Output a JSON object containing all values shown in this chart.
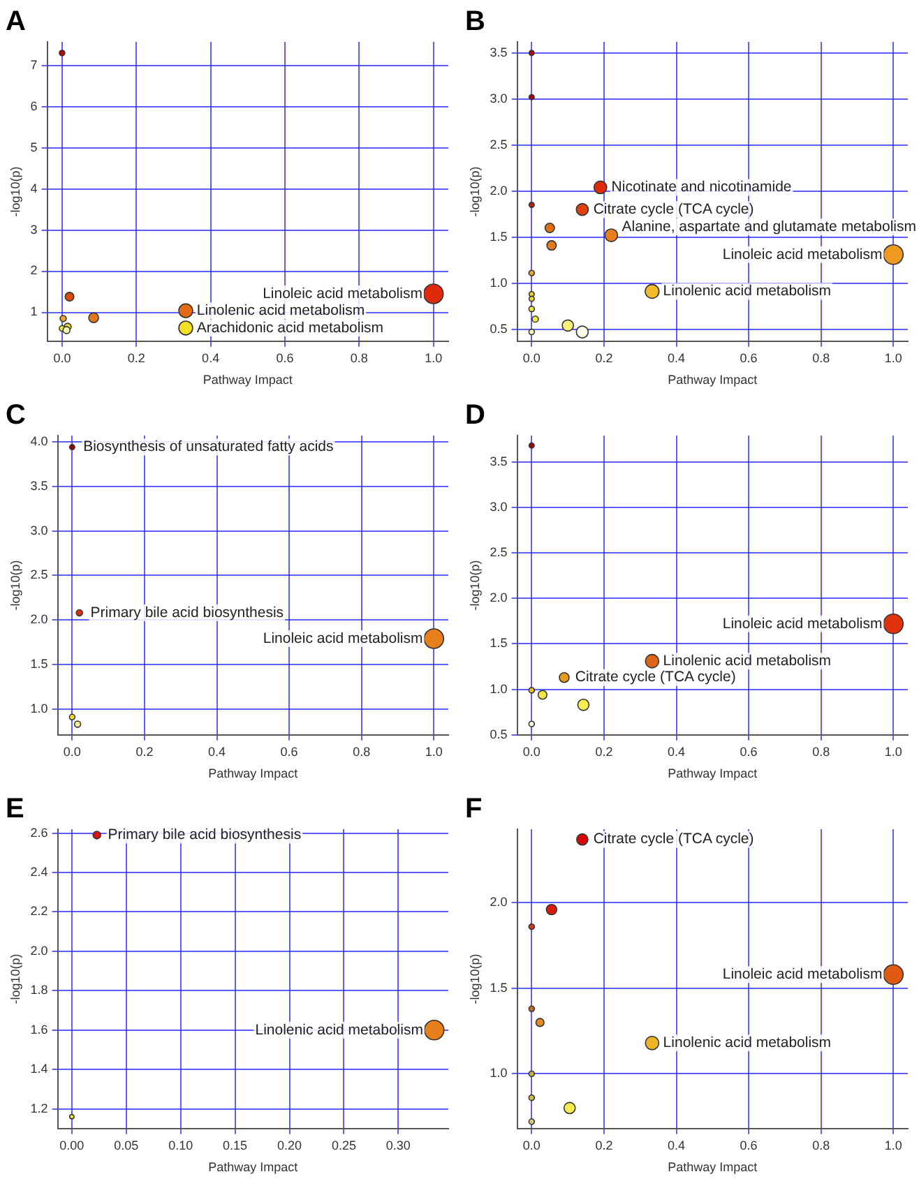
{
  "chart_data": [
    {
      "type": "bubble",
      "title": "A",
      "xlabel": "Pathway Impact",
      "ylabel": "-log10(p)",
      "grid": true,
      "x": [
        0,
        0.02,
        0.085,
        0.003,
        0.015,
        0,
        0.012,
        0.333,
        0.333,
        1.0
      ],
      "values": [
        7.3,
        1.38,
        0.87,
        0.85,
        0.65,
        0.61,
        0.57,
        1.04,
        0.62,
        1.45
      ],
      "sizes": [
        0.08,
        0.2,
        0.25,
        0.1,
        0.13,
        0.08,
        0.13,
        0.5,
        0.5,
        1
      ],
      "colors": [
        "#c00000",
        "#dd4a10",
        "#e07a1c",
        "#eea030",
        "#f2dc30",
        "#f5ee40",
        "#fbf7b0",
        "#e46a14",
        "#f4e020",
        "#e02a0c"
      ],
      "xlim": [
        -0.04,
        1.04
      ],
      "ylim": [
        0.3,
        7.57
      ],
      "xticks": [
        {
          "value": 0,
          "label": "0.0"
        },
        0.2,
        0.4,
        0.6,
        0.8,
        {
          "value": 1,
          "label": "1.0"
        }
      ],
      "yticks": [
        1,
        2,
        3,
        4,
        5,
        6,
        7
      ],
      "annotations": [
        {
          "text": "Linoleic acid metabolism",
          "x": 1.0,
          "y": 1.45
        },
        {
          "text": "Linolenic acid metabolism",
          "x": 0.333,
          "y": 1.04
        },
        {
          "text": "Arachidonic acid metabolism",
          "x": 0.333,
          "y": 0.62
        }
      ]
    },
    {
      "type": "bubble",
      "title": "B",
      "xlabel": "Pathway Impact",
      "ylabel": "-log10(p)",
      "grid": true,
      "x": [
        0,
        0,
        0,
        0.19,
        0.14,
        0.05,
        0.22,
        0.055,
        0,
        0,
        0,
        0,
        0.01,
        0,
        0.1,
        0.14,
        0.333,
        1.0
      ],
      "values": [
        3.5,
        3.02,
        1.85,
        2.04,
        1.8,
        1.6,
        1.52,
        1.41,
        1.11,
        0.88,
        0.83,
        0.72,
        0.61,
        0.47,
        0.54,
        0.47,
        0.91,
        1.31
      ],
      "sizes": [
        0.07,
        0.07,
        0.07,
        0.42,
        0.37,
        0.23,
        0.42,
        0.23,
        0.08,
        0.07,
        0.07,
        0.08,
        0.1,
        0.08,
        0.33,
        0.37,
        0.5,
        1
      ],
      "colors": [
        "#b80000",
        "#b80000",
        "#c81808",
        "#e02a0c",
        "#e0400e",
        "#e07018",
        "#e67e1c",
        "#e07a1c",
        "#e8a030",
        "#f0d030",
        "#f0d838",
        "#f4e640",
        "#f6ee48",
        "#fbf7c0",
        "#f8f07a",
        "#fcfbe8",
        "#f0bc28",
        "#ec9a20"
      ],
      "xlim": [
        -0.04,
        1.04
      ],
      "ylim": [
        0.37,
        3.62
      ],
      "xticks": [
        {
          "value": 0,
          "label": "0.0"
        },
        0.2,
        0.4,
        0.6,
        0.8,
        {
          "value": 1,
          "label": "1.0"
        }
      ],
      "yticks": [
        0.5,
        {
          "value": 1,
          "label": "1.0"
        },
        1.5,
        {
          "value": 2,
          "label": "2.0"
        },
        2.5,
        {
          "value": 3,
          "label": "3.0"
        },
        3.5
      ],
      "annotations": [
        {
          "text": "Nicotinate and nicotinamide",
          "x": 0.19,
          "y": 2.04
        },
        {
          "text": "Citrate cycle (TCA cycle)",
          "x": 0.14,
          "y": 1.8
        },
        {
          "text": "Alanine, aspartate and glutamate metabolism",
          "x": 0.22,
          "y": 1.52
        },
        {
          "text": "Linoleic acid metabolism",
          "x": 1.0,
          "y": 1.31
        },
        {
          "text": "Linolenic acid metabolism",
          "x": 0.333,
          "y": 0.91
        }
      ]
    },
    {
      "type": "bubble",
      "title": "C",
      "xlabel": "Pathway Impact",
      "ylabel": "-log10(p)",
      "grid": true,
      "x": [
        0,
        0.02,
        1.0,
        0,
        0.015
      ],
      "values": [
        3.94,
        2.08,
        1.79,
        0.91,
        0.83
      ],
      "sizes": [
        0.07,
        0.1,
        1,
        0.08,
        0.1
      ],
      "colors": [
        "#a00000",
        "#d83010",
        "#e67e1c",
        "#f2dc30",
        "#f8f0a0"
      ],
      "xlim": [
        -0.04,
        1.04
      ],
      "ylim": [
        0.71,
        4.07
      ],
      "xticks": [
        {
          "value": 0,
          "label": "0.0"
        },
        0.2,
        0.4,
        0.6,
        0.8,
        {
          "value": 1,
          "label": "1.0"
        }
      ],
      "yticks": [
        {
          "value": 1,
          "label": "1.0"
        },
        1.5,
        {
          "value": 2,
          "label": "2.0"
        },
        2.5,
        {
          "value": 3,
          "label": "3.0"
        },
        3.5,
        {
          "value": 4,
          "label": "4.0"
        }
      ],
      "annotations": [
        {
          "text": "Biosynthesis of unsaturated fatty acids",
          "x": 0,
          "y": 3.94
        },
        {
          "text": "Primary bile acid biosynthesis",
          "x": 0.02,
          "y": 2.08
        },
        {
          "text": "Linoleic acid metabolism",
          "x": 1.0,
          "y": 1.79
        }
      ]
    },
    {
      "type": "bubble",
      "title": "D",
      "xlabel": "Pathway Impact",
      "ylabel": "-log10(p)",
      "grid": true,
      "x": [
        0,
        1.0,
        0.333,
        0.09,
        0,
        0.03,
        0.143,
        0
      ],
      "values": [
        3.68,
        1.72,
        1.31,
        1.13,
        0.99,
        0.94,
        0.83,
        0.62
      ],
      "sizes": [
        0.07,
        1,
        0.47,
        0.25,
        0.08,
        0.2,
        0.33,
        0.08
      ],
      "colors": [
        "#b00000",
        "#e0320c",
        "#e06418",
        "#e89a20",
        "#eebc30",
        "#f4e640",
        "#f6ee50",
        "#fcfbe0"
      ],
      "xlim": [
        -0.04,
        1.04
      ],
      "ylim": [
        0.5,
        3.79
      ],
      "xticks": [
        {
          "value": 0,
          "label": "0.0"
        },
        0.2,
        0.4,
        0.6,
        0.8,
        {
          "value": 1,
          "label": "1.0"
        }
      ],
      "yticks": [
        0.5,
        {
          "value": 1,
          "label": "1.0"
        },
        1.5,
        {
          "value": 2,
          "label": "2.0"
        },
        2.5,
        {
          "value": 3,
          "label": "3.0"
        },
        3.5
      ],
      "annotations": [
        {
          "text": "Linoleic acid metabolism",
          "x": 1.0,
          "y": 1.72
        },
        {
          "text": "Linolenic acid metabolism",
          "x": 0.333,
          "y": 1.31
        },
        {
          "text": "Citrate cycle (TCA cycle)",
          "x": 0.09,
          "y": 1.13
        }
      ]
    },
    {
      "type": "bubble",
      "title": "E",
      "xlabel": "Pathway Impact",
      "ylabel": "-log10(p)",
      "grid": true,
      "x": [
        0.023,
        0.333,
        0
      ],
      "values": [
        2.59,
        1.6,
        1.16
      ],
      "sizes": [
        0.15,
        1,
        0.05
      ],
      "colors": [
        "#e01010",
        "#e67e1c",
        "#f6ee30"
      ],
      "xlim": [
        -0.013,
        0.346
      ],
      "ylim": [
        1.1,
        2.62
      ],
      "xticks": [
        {
          "value": 0,
          "label": "0.00"
        },
        0.05,
        {
          "value": 0.1,
          "label": "0.10"
        },
        0.15,
        {
          "value": 0.2,
          "label": "0.20"
        },
        0.25,
        {
          "value": 0.3,
          "label": "0.30"
        }
      ],
      "yticks": [
        1.2,
        1.4,
        1.6,
        1.8,
        {
          "value": 2,
          "label": "2.0"
        },
        2.2,
        2.4,
        2.6
      ],
      "annotations": [
        {
          "text": "Primary bile acid biosynthesis",
          "x": 0.023,
          "y": 2.59
        },
        {
          "text": "Linolenic acid metabolism",
          "x": 0.333,
          "y": 1.6
        }
      ]
    },
    {
      "type": "bubble",
      "title": "F",
      "xlabel": "Pathway Impact",
      "ylabel": "-log10(p)",
      "grid": true,
      "x": [
        0.14,
        0.055,
        0,
        1.0,
        0,
        0.023,
        0.333,
        0,
        0,
        0.105,
        0
      ],
      "values": [
        2.37,
        1.96,
        1.86,
        1.58,
        1.38,
        1.3,
        1.18,
        1.0,
        0.86,
        0.8,
        0.72
      ],
      "sizes": [
        0.33,
        0.28,
        0.08,
        1,
        0.08,
        0.17,
        0.47,
        0.08,
        0.08,
        0.33,
        0.08
      ],
      "colors": [
        "#d80808",
        "#d81c0c",
        "#c83a1a",
        "#e05a14",
        "#c86a28",
        "#e48a24",
        "#eeb424",
        "#c8b040",
        "#d0c050",
        "#f6ee50",
        "#d8c878"
      ],
      "xlim": [
        -0.04,
        1.04
      ],
      "ylim": [
        0.68,
        2.43
      ],
      "xticks": [
        {
          "value": 0,
          "label": "0.0"
        },
        0.2,
        0.4,
        0.6,
        0.8,
        {
          "value": 1,
          "label": "1.0"
        }
      ],
      "yticks": [
        {
          "value": 1,
          "label": "1.0"
        },
        1.5,
        {
          "value": 2,
          "label": "2.0"
        }
      ],
      "annotations": [
        {
          "text": "Citrate cycle (TCA cycle)",
          "x": 0.14,
          "y": 2.37
        },
        {
          "text": "Linoleic acid metabolism",
          "x": 1.0,
          "y": 1.58
        },
        {
          "text": "Linolenic acid metabolism",
          "x": 0.333,
          "y": 1.18
        }
      ]
    }
  ]
}
